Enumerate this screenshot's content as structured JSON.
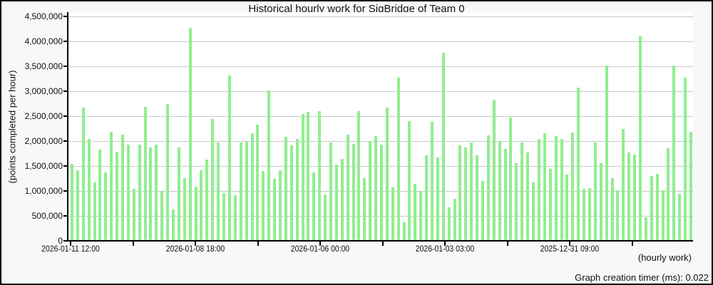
{
  "title": "Historical hourly work for SigBridge of Team 0",
  "y_axis": {
    "label": "(points completed per hour)",
    "tick_labels": [
      "0",
      "500,000",
      "1,000,000",
      "1,500,000",
      "2,000,000",
      "2,500,000",
      "3,000,000",
      "3,500,000",
      "4,000,000",
      "4,500,000"
    ]
  },
  "x_axis": {
    "tick_labels": [
      "2026-01-11 12:00",
      "2026-01-08 18:00",
      "2026-01-06 00:00",
      "2026-01-03 03:00",
      "2025-12-31 09:00"
    ],
    "note": "(hourly work)"
  },
  "footer": {
    "timer_text": "Graph creation timer (ms): 0.022"
  },
  "colors": {
    "bar": "#90EE90",
    "grid": "#c8c8c8",
    "axis": "#000000",
    "plot_bg": "#ffffff",
    "figure_bg": "#f8f8f8",
    "border": "#000000"
  },
  "chart_data": {
    "type": "bar",
    "title": "Historical hourly work for SigBridge of Team 0",
    "xlabel": "(hourly work)",
    "ylabel": "(points completed per hour)",
    "ylim": [
      0,
      4500000
    ],
    "ytick_step": 500000,
    "grid": true,
    "legend": false,
    "x_tick_labels": [
      "2026-01-11 12:00",
      "2026-01-08 18:00",
      "2026-01-06 00:00",
      "2026-01-03 03:00",
      "2025-12-31 09:00"
    ],
    "x_minor_ticks_between_labels": 1,
    "bar_unit": "points completed per hour",
    "values": [
      1550000,
      1430000,
      2690000,
      2060000,
      1180000,
      1840000,
      1390000,
      2200000,
      1800000,
      2140000,
      1940000,
      1060000,
      1940000,
      2700000,
      1880000,
      1940000,
      1020000,
      2760000,
      640000,
      1890000,
      1270000,
      4290000,
      1100000,
      1430000,
      1640000,
      2460000,
      1980000,
      970000,
      3330000,
      930000,
      1990000,
      2000000,
      2170000,
      2340000,
      1420000,
      3030000,
      1250000,
      1430000,
      2100000,
      1930000,
      2050000,
      2550000,
      2600000,
      1390000,
      2620000,
      940000,
      1980000,
      1540000,
      1650000,
      2140000,
      1960000,
      2610000,
      1270000,
      2020000,
      2110000,
      1940000,
      2680000,
      1090000,
      3280000,
      380000,
      2410000,
      1150000,
      1020000,
      1730000,
      2400000,
      1680000,
      3780000,
      690000,
      850000,
      1930000,
      1890000,
      1990000,
      1730000,
      1210000,
      2130000,
      2840000,
      2020000,
      1850000,
      2480000,
      1570000,
      1990000,
      1790000,
      1180000,
      2060000,
      2170000,
      1460000,
      2120000,
      2060000,
      1340000,
      2190000,
      3090000,
      1060000,
      1070000,
      1980000,
      1570000,
      3530000,
      1270000,
      1030000,
      2260000,
      1780000,
      1740000,
      4120000,
      480000,
      1310000,
      1350000,
      1030000,
      1870000,
      3530000,
      950000,
      3280000,
      2200000
    ]
  }
}
